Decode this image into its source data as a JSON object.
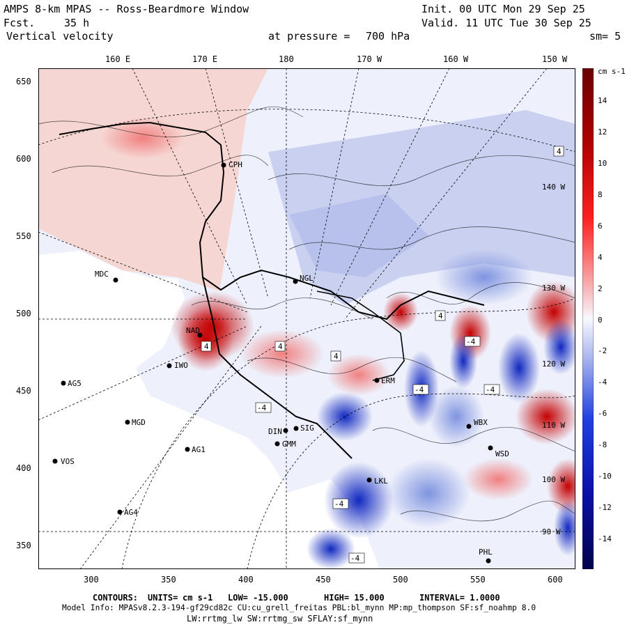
{
  "header": {
    "title": "AMPS 8-km MPAS -- Ross-Beardmore Window",
    "fcst_label": "Fcst.",
    "fcst_value": "35 h",
    "variable": "Vertical velocity",
    "init": "Init. 00 UTC Mon 29 Sep 25",
    "valid": "Valid. 11 UTC Tue 30 Sep 25",
    "pressure_label": "at pressure =",
    "pressure_value": "700 hPa",
    "smoothing": "sm= 5"
  },
  "longitude_labels": [
    "160 E",
    "170 E",
    "180",
    "170 W",
    "160 W",
    "150 W"
  ],
  "x_ticks": [
    "300",
    "350",
    "400",
    "450",
    "500",
    "550",
    "600"
  ],
  "y_ticks": [
    "650",
    "600",
    "550",
    "500",
    "450",
    "400",
    "350"
  ],
  "colorbar": {
    "units": "cm s-1",
    "labels": [
      "14",
      "12",
      "10",
      "8",
      "6",
      "4",
      "2",
      "0",
      "-2",
      "-4",
      "-6",
      "-8",
      "-10",
      "-12",
      "-14"
    ]
  },
  "meridian_labels_right": [
    "140 W",
    "130 W",
    "120 W",
    "110 W",
    "100 W",
    "90 W"
  ],
  "stations": [
    {
      "name": "CPH"
    },
    {
      "name": "MDC"
    },
    {
      "name": "NGL"
    },
    {
      "name": "IWO"
    },
    {
      "name": "AG5"
    },
    {
      "name": "MGD"
    },
    {
      "name": "AG1"
    },
    {
      "name": "VOS"
    },
    {
      "name": "AG4"
    },
    {
      "name": "LKL"
    },
    {
      "name": "PHL"
    },
    {
      "name": "WSD"
    },
    {
      "name": "WBX"
    },
    {
      "name": "ERM"
    },
    {
      "name": "DIN"
    },
    {
      "name": "GMM"
    },
    {
      "name": "NAD"
    },
    {
      "name": "SIG"
    }
  ],
  "contour_labels": [
    "4",
    "4",
    "4",
    "-4",
    "-4",
    "-4",
    "-4",
    "-4",
    "-4",
    "4",
    "4"
  ],
  "footer": {
    "contours_label": "CONTOURS:",
    "units_label": "UNITS=",
    "units_value": "cm s-1",
    "low": "LOW= -15.000",
    "high": "HIGH= 15.000",
    "interval": "INTERVAL= 1.0000",
    "model_info": "Model Info: MPASv8.2.3-194-gf29cd82c CU:cu_grell_freitas PBL:bl_mynn MP:mp_thompson SF:sf_noahmp 8.0",
    "model_info2": "LW:rrtmg_lw SW:rrtmg_sw SFLAY:sf_mynn"
  },
  "colors": {
    "warm": "#cc0000",
    "cool": "#1030c0",
    "neutral": "#f4f4ff"
  }
}
